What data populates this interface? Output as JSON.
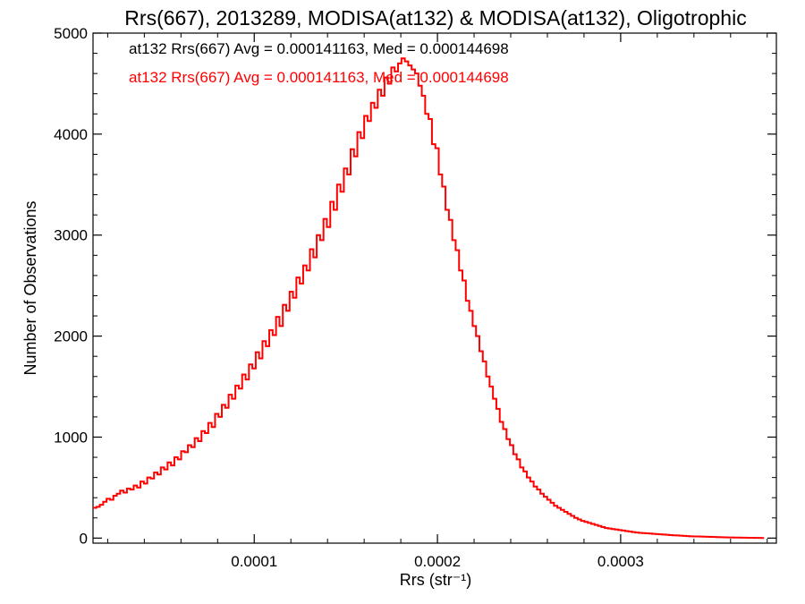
{
  "chart_data": {
    "type": "histogram",
    "title": "Rrs(667), 2013289, MODISA(at132) & MODISA(at132), Oligotrophic",
    "xlabel": "Rrs (str⁻¹)",
    "ylabel": "Number of Observations",
    "xlim": [
      1.2e-05,
      0.000385
    ],
    "ylim": [
      -50,
      5000
    ],
    "xticks": [
      {
        "value": 0.0001,
        "label": "0.0001"
      },
      {
        "value": 0.0002,
        "label": "0.0002"
      },
      {
        "value": 0.0003,
        "label": "0.0003"
      }
    ],
    "yticks": [
      {
        "value": 0,
        "label": "0"
      },
      {
        "value": 1000,
        "label": "1000"
      },
      {
        "value": 2000,
        "label": "2000"
      },
      {
        "value": 3000,
        "label": "3000"
      },
      {
        "value": 4000,
        "label": "4000"
      },
      {
        "value": 5000,
        "label": "5000"
      }
    ],
    "annotations": [
      {
        "text": "at132 Rrs(667) Avg = 0.000141163, Med = 0.000144698",
        "color": "#000000"
      },
      {
        "text": "at132 Rrs(667) Avg = 0.000141163, Med = 0.000144698",
        "color": "#ff0000"
      }
    ],
    "grid": false,
    "series": [
      {
        "color": "#ff0000",
        "bin_width": 1.85e-06,
        "x_start": 1.2e-05,
        "values": [
          300,
          310,
          330,
          360,
          390,
          380,
          420,
          440,
          470,
          450,
          490,
          480,
          520,
          500,
          560,
          540,
          600,
          590,
          650,
          630,
          700,
          680,
          750,
          720,
          800,
          780,
          860,
          850,
          920,
          900,
          990,
          960,
          1060,
          1040,
          1140,
          1100,
          1230,
          1200,
          1320,
          1290,
          1420,
          1380,
          1510,
          1480,
          1620,
          1570,
          1720,
          1680,
          1840,
          1780,
          1950,
          1900,
          2060,
          2010,
          2190,
          2100,
          2310,
          2250,
          2440,
          2380,
          2580,
          2520,
          2700,
          2650,
          2860,
          2780,
          3000,
          2950,
          3160,
          3080,
          3330,
          3250,
          3500,
          3430,
          3660,
          3600,
          3850,
          3780,
          4020,
          3960,
          4180,
          4130,
          4310,
          4260,
          4440,
          4380,
          4560,
          4500,
          4660,
          4620,
          4700,
          4750,
          4720,
          4680,
          4640,
          4600,
          4480,
          4380,
          4200,
          4150,
          3900,
          3860,
          3600,
          3480,
          3250,
          3150,
          2950,
          2850,
          2650,
          2550,
          2350,
          2250,
          2100,
          2000,
          1850,
          1750,
          1600,
          1500,
          1380,
          1280,
          1150,
          1080,
          980,
          920,
          830,
          780,
          700,
          660,
          600,
          560,
          510,
          480,
          440,
          410,
          380,
          350,
          320,
          300,
          280,
          260,
          240,
          220,
          200,
          185,
          170,
          160,
          150,
          140,
          130,
          120,
          110,
          100,
          95,
          90,
          85,
          80,
          75,
          70,
          65,
          60,
          55,
          52,
          50,
          48,
          45,
          42,
          40,
          38,
          35,
          33,
          30,
          28,
          26,
          24,
          22,
          20,
          18,
          17,
          16,
          15,
          14,
          13,
          12,
          11,
          10,
          9,
          8,
          7,
          6,
          5,
          5,
          4,
          4,
          3,
          3,
          2,
          2,
          1
        ]
      }
    ]
  }
}
